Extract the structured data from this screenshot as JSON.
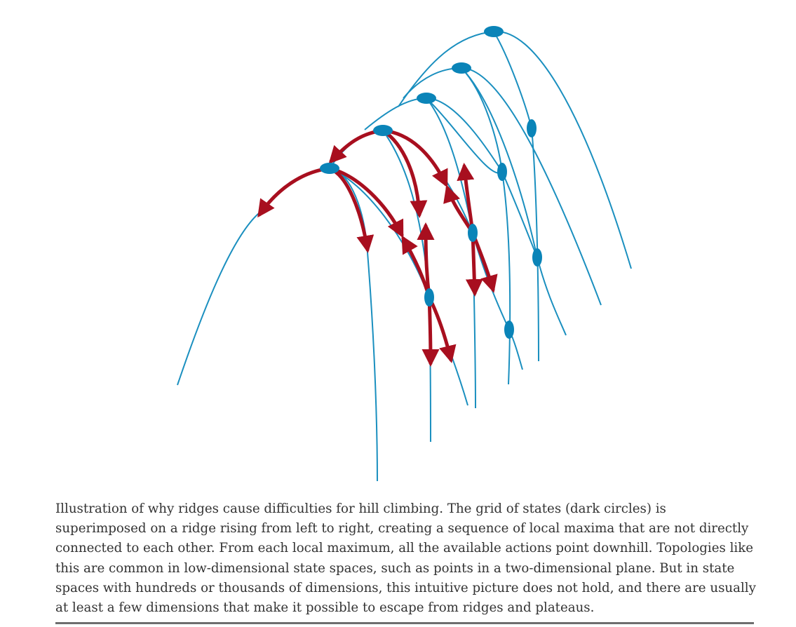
{
  "figure": {
    "caption": "Illustration of why ridges cause difficulties for hill climbing. The grid of states (dark circles) is superimposed on a ridge rising from left to right, creating a sequence of local maxima that are not directly connected to each other. From each local maximum, all the available actions point downhill. Topologies like this are common in low-dimensional state spaces, such as points in a two-dimensional plane. But in state spaces with hundreds or thousands of dimensions, this intuitive picture does not hold, and there are usually at least a few dimensions that make it possible to escape from ridges and plateaus.",
    "colors": {
      "ridge_curve": "#1a8fbf",
      "state_node": "#0a84b8",
      "downhill_arrow": "#a80f1f",
      "caption_text": "#333333",
      "rule": "#6e6e6e"
    }
  }
}
